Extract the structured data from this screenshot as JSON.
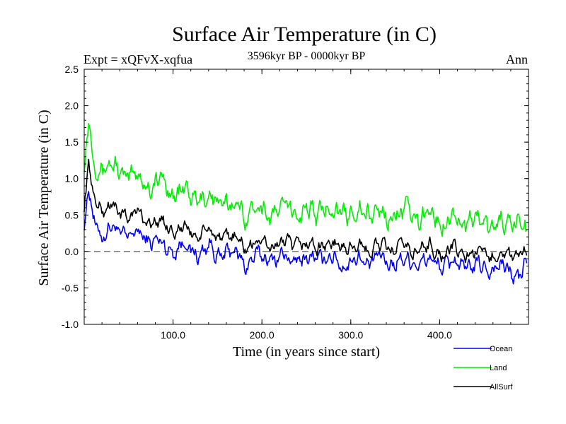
{
  "chart_data": {
    "type": "line",
    "title": "Surface Air Temperature (in C)",
    "subtitle": "3596kyr BP - 0000kyr BP",
    "experiment_label": "Expt = xQFvX-xqfua",
    "period_label": "Ann",
    "xlabel": "Time (in years since start)",
    "ylabel": "Surface Air Temperature (in C)",
    "xlim": [
      0,
      500
    ],
    "ylim": [
      -1.0,
      2.5
    ],
    "x_ticks": [
      100,
      200,
      300,
      400
    ],
    "x_tick_labels": [
      "100.0",
      "200.0",
      "300.0",
      "400.0"
    ],
    "y_ticks": [
      -1.0,
      -0.5,
      0.0,
      0.5,
      1.0,
      1.5,
      2.0,
      2.5
    ],
    "y_tick_labels": [
      "-1.0",
      "-0.5",
      "0.0",
      "0.5",
      "1.0",
      "1.5",
      "2.0",
      "2.5"
    ],
    "reference_line": 0.0,
    "legend_position": "bottom-right",
    "series": [
      {
        "name": "Ocean",
        "color": "#0000ff",
        "x": [
          0,
          5,
          10,
          20,
          30,
          40,
          50,
          60,
          70,
          80,
          90,
          100,
          110,
          120,
          130,
          140,
          150,
          160,
          170,
          180,
          190,
          200,
          210,
          220,
          230,
          240,
          250,
          260,
          270,
          280,
          290,
          300,
          310,
          320,
          330,
          340,
          350,
          360,
          370,
          380,
          390,
          400,
          410,
          420,
          430,
          440,
          450,
          460,
          470,
          480,
          490,
          498
        ],
        "values": [
          0.3,
          0.85,
          0.45,
          0.25,
          0.3,
          0.25,
          0.25,
          0.2,
          0.2,
          0.15,
          0.05,
          0.05,
          0.1,
          0.0,
          0.0,
          0.05,
          -0.05,
          0.0,
          -0.05,
          -0.15,
          -0.1,
          -0.1,
          -0.05,
          -0.1,
          -0.1,
          -0.1,
          -0.15,
          -0.05,
          -0.1,
          -0.1,
          -0.15,
          -0.15,
          -0.1,
          -0.15,
          -0.1,
          -0.15,
          -0.1,
          -0.15,
          -0.1,
          -0.15,
          -0.15,
          -0.15,
          -0.2,
          -0.15,
          -0.2,
          -0.25,
          -0.2,
          -0.2,
          -0.25,
          -0.25,
          -0.35,
          -0.2
        ]
      },
      {
        "name": "Land",
        "color": "#00ee00",
        "x": [
          0,
          5,
          10,
          20,
          30,
          40,
          50,
          60,
          70,
          80,
          90,
          100,
          110,
          120,
          130,
          140,
          150,
          160,
          170,
          180,
          190,
          200,
          210,
          220,
          230,
          240,
          250,
          260,
          270,
          280,
          290,
          300,
          310,
          320,
          330,
          340,
          350,
          360,
          370,
          380,
          390,
          400,
          410,
          420,
          430,
          440,
          450,
          460,
          470,
          480,
          490,
          498
        ],
        "values": [
          1.1,
          1.8,
          1.25,
          1.2,
          1.15,
          1.1,
          1.05,
          1.0,
          0.95,
          0.95,
          0.9,
          0.85,
          0.8,
          0.75,
          0.75,
          0.7,
          0.7,
          0.65,
          0.6,
          0.55,
          0.6,
          0.6,
          0.55,
          0.55,
          0.6,
          0.55,
          0.55,
          0.55,
          0.6,
          0.55,
          0.55,
          0.5,
          0.55,
          0.55,
          0.5,
          0.5,
          0.55,
          0.5,
          0.5,
          0.45,
          0.5,
          0.45,
          0.45,
          0.45,
          0.45,
          0.4,
          0.4,
          0.35,
          0.35,
          0.35,
          0.45,
          0.2
        ]
      },
      {
        "name": "AllSurf",
        "color": "#000000",
        "x": [
          0,
          5,
          10,
          20,
          30,
          40,
          50,
          60,
          70,
          80,
          90,
          100,
          110,
          120,
          130,
          140,
          150,
          160,
          170,
          180,
          190,
          200,
          210,
          220,
          230,
          240,
          250,
          260,
          270,
          280,
          290,
          300,
          310,
          320,
          330,
          340,
          350,
          360,
          370,
          380,
          390,
          400,
          410,
          420,
          430,
          440,
          450,
          460,
          470,
          480,
          490,
          498
        ],
        "values": [
          0.55,
          1.2,
          0.75,
          0.6,
          0.6,
          0.55,
          0.5,
          0.5,
          0.45,
          0.4,
          0.35,
          0.35,
          0.3,
          0.25,
          0.25,
          0.25,
          0.2,
          0.2,
          0.15,
          0.1,
          0.1,
          0.1,
          0.1,
          0.1,
          0.1,
          0.1,
          0.05,
          0.1,
          0.1,
          0.05,
          0.1,
          0.05,
          0.05,
          0.05,
          0.05,
          0.05,
          0.05,
          0.05,
          0.0,
          0.05,
          0.05,
          0.0,
          0.0,
          0.0,
          0.0,
          -0.05,
          -0.05,
          -0.05,
          -0.05,
          -0.05,
          -0.05,
          -0.1
        ]
      }
    ]
  }
}
